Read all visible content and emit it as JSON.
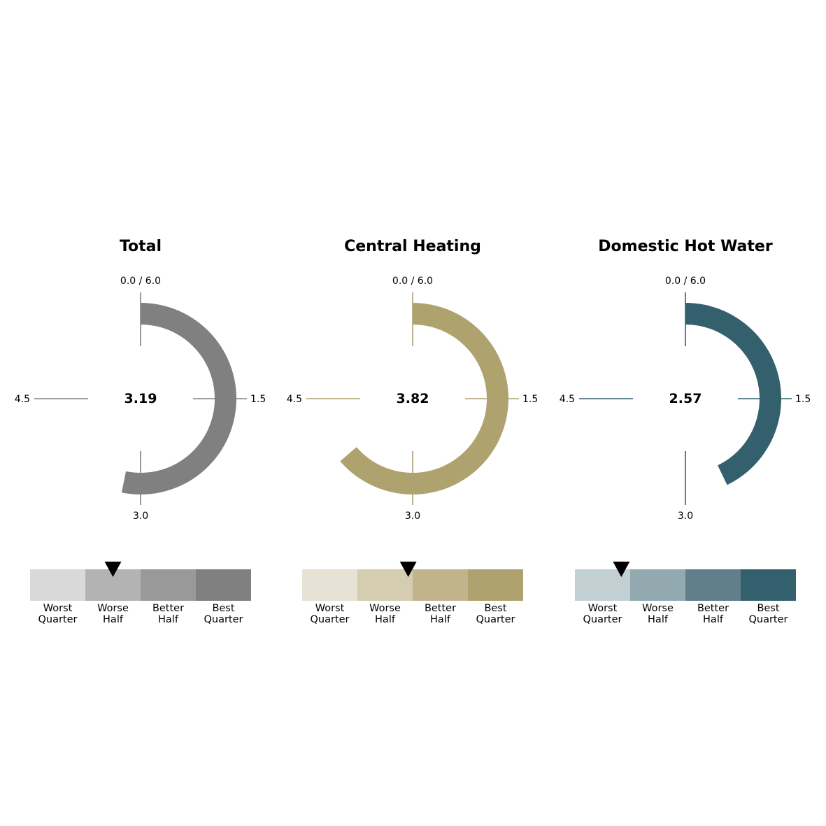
{
  "band_labels": [
    {
      "line1": "Worst",
      "line2": "Quarter"
    },
    {
      "line1": "Worse",
      "line2": "Half"
    },
    {
      "line1": "Better",
      "line2": "Half"
    },
    {
      "line1": "Best",
      "line2": "Quarter"
    }
  ],
  "chart_data": [
    {
      "type": "gauge",
      "title": "Total",
      "value": 3.19,
      "value_label": "3.19",
      "scale": {
        "min": 0,
        "max": 6,
        "direction": "clockwise",
        "zero_position": "top"
      },
      "tick_labels": {
        "top": "0.0 / 6.0",
        "right": "1.5",
        "bottom": "3.0",
        "left": "4.5"
      },
      "color": "#808080",
      "band_colors": [
        "#d9d9d9",
        "#b3b3b3",
        "#999999",
        "#808080"
      ],
      "marker_position": 0.375
    },
    {
      "type": "gauge",
      "title": "Central Heating",
      "value": 3.82,
      "value_label": "3.82",
      "scale": {
        "min": 0,
        "max": 6,
        "direction": "clockwise",
        "zero_position": "top"
      },
      "tick_labels": {
        "top": "0.0 / 6.0",
        "right": "1.5",
        "bottom": "3.0",
        "left": "4.5"
      },
      "color": "#aea26f",
      "band_colors": [
        "#e7e2d6",
        "#d5cdb0",
        "#c1b48d",
        "#aea26f"
      ],
      "marker_position": 0.48
    },
    {
      "type": "gauge",
      "title": "Domestic Hot Water",
      "value": 2.57,
      "value_label": "2.57",
      "scale": {
        "min": 0,
        "max": 6,
        "direction": "clockwise",
        "zero_position": "top"
      },
      "tick_labels": {
        "top": "0.0 / 6.0",
        "right": "1.5",
        "bottom": "3.0",
        "left": "4.5"
      },
      "color": "#34606e",
      "band_colors": [
        "#c3d0d3",
        "#93a9b0",
        "#617f8a",
        "#34606e"
      ],
      "marker_position": 0.21
    }
  ]
}
